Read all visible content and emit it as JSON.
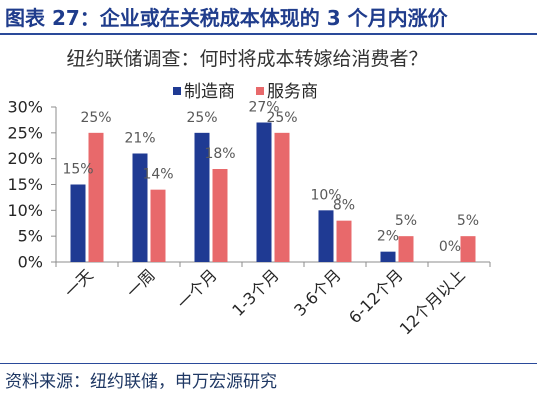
{
  "figure": {
    "caption": "图表 27：企业或在关税成本体现的 3 个月内涨价",
    "source": "资料来源：纽约联储，申万宏源研究"
  },
  "chart_data": {
    "type": "bar",
    "title": "纽约联储调查：何时将成本转嫁给消费者？",
    "categories": [
      "一天",
      "一周",
      "一个月",
      "1-3个月",
      "3-6个月",
      "6-12个月",
      "12个月以上"
    ],
    "series": [
      {
        "name": "制造商",
        "color": "#1F3A93",
        "values": [
          15,
          21,
          25,
          27,
          10,
          2,
          0
        ]
      },
      {
        "name": "服务商",
        "color": "#E8696B",
        "values": [
          25,
          14,
          18,
          25,
          8,
          5,
          5
        ]
      }
    ],
    "unit": "%",
    "ylim": [
      0,
      30
    ],
    "yticks": [
      0,
      5,
      10,
      15,
      20,
      25,
      30
    ],
    "grid": false,
    "legend": "top-center",
    "data_labels": true
  }
}
